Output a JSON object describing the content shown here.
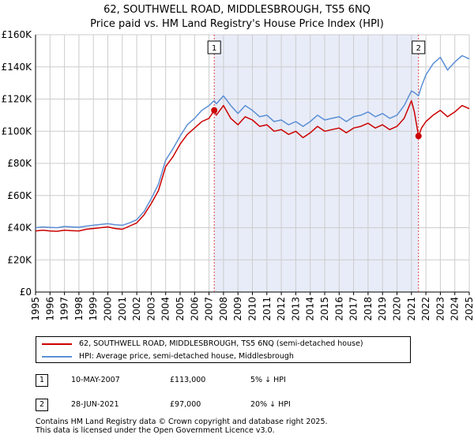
{
  "chart_data": {
    "type": "line",
    "title": "62, SOUTHWELL ROAD, MIDDLESBROUGH, TS5 6NQ",
    "subtitle": "Price paid vs. HM Land Registry's House Price Index (HPI)",
    "xlim": [
      1995,
      2025
    ],
    "ylim": [
      0,
      160000
    ],
    "yticks": [
      0,
      20000,
      40000,
      60000,
      80000,
      100000,
      120000,
      140000,
      160000
    ],
    "ytick_labels": [
      "£0",
      "£20K",
      "£40K",
      "£60K",
      "£80K",
      "£100K",
      "£120K",
      "£140K",
      "£160K"
    ],
    "xticks": [
      1995,
      1996,
      1997,
      1998,
      1999,
      2000,
      2001,
      2002,
      2003,
      2004,
      2005,
      2006,
      2007,
      2008,
      2009,
      2010,
      2011,
      2012,
      2013,
      2014,
      2015,
      2016,
      2017,
      2018,
      2019,
      2020,
      2021,
      2022,
      2023,
      2024,
      2025
    ],
    "grid": true,
    "shaded_span": [
      2007.36,
      2021.49
    ],
    "series": [
      {
        "name": "62, SOUTHWELL ROAD, MIDDLESBROUGH, TS5 6NQ (semi-detached house)",
        "color": "#cc0000",
        "x": [
          1995,
          1995.5,
          1996,
          1996.5,
          1997,
          1997.5,
          1998,
          1998.5,
          1999,
          1999.5,
          2000,
          2000.5,
          2001,
          2001.5,
          2002,
          2002.5,
          2003,
          2003.5,
          2004,
          2004.5,
          2005,
          2005.5,
          2006,
          2006.5,
          2007,
          2007.36,
          2007.5,
          2008,
          2008.5,
          2009,
          2009.5,
          2010,
          2010.5,
          2011,
          2011.5,
          2012,
          2012.5,
          2013,
          2013.5,
          2014,
          2014.5,
          2015,
          2015.5,
          2016,
          2016.5,
          2017,
          2017.5,
          2018,
          2018.5,
          2019,
          2019.5,
          2020,
          2020.5,
          2021,
          2021.2,
          2021.49,
          2021.7,
          2022,
          2022.5,
          2023,
          2023.5,
          2024,
          2024.5,
          2025
        ],
        "values": [
          38000,
          38500,
          38000,
          37800,
          38500,
          38200,
          38000,
          39000,
          39500,
          40000,
          40500,
          39500,
          39000,
          41000,
          43000,
          48000,
          55000,
          63000,
          78000,
          84000,
          92000,
          98000,
          102000,
          106000,
          108000,
          113000,
          110000,
          116000,
          108000,
          104000,
          109000,
          107000,
          103000,
          104000,
          100000,
          101000,
          98000,
          100000,
          96000,
          99000,
          103000,
          100000,
          101000,
          102000,
          99000,
          102000,
          103000,
          105000,
          102000,
          104000,
          101000,
          103000,
          108000,
          119000,
          112000,
          97000,
          102000,
          106000,
          110000,
          113000,
          109000,
          112000,
          116000,
          114000
        ]
      },
      {
        "name": "HPI: Average price, semi-detached house, Middlesbrough",
        "color": "#5b8fd6",
        "x": [
          1995,
          1995.5,
          1996,
          1996.5,
          1997,
          1997.5,
          1998,
          1998.5,
          1999,
          1999.5,
          2000,
          2000.5,
          2001,
          2001.5,
          2002,
          2002.5,
          2003,
          2003.5,
          2004,
          2004.5,
          2005,
          2005.5,
          2006,
          2006.5,
          2007,
          2007.36,
          2007.5,
          2008,
          2008.5,
          2009,
          2009.5,
          2010,
          2010.5,
          2011,
          2011.5,
          2012,
          2012.5,
          2013,
          2013.5,
          2014,
          2014.5,
          2015,
          2015.5,
          2016,
          2016.5,
          2017,
          2017.5,
          2018,
          2018.5,
          2019,
          2019.5,
          2020,
          2020.5,
          2021,
          2021.2,
          2021.49,
          2021.7,
          2022,
          2022.5,
          2023,
          2023.5,
          2024,
          2024.5,
          2025
        ],
        "values": [
          40000,
          40500,
          40200,
          40000,
          40800,
          40500,
          40300,
          41000,
          41500,
          42000,
          42500,
          41800,
          41500,
          43000,
          45000,
          50000,
          58000,
          67000,
          82000,
          89000,
          97000,
          104000,
          108000,
          113000,
          116000,
          119000,
          117000,
          122000,
          116000,
          111000,
          116000,
          113000,
          109000,
          110000,
          106000,
          107000,
          104000,
          106000,
          103000,
          106000,
          110000,
          107000,
          108000,
          109000,
          106000,
          109000,
          110000,
          112000,
          109000,
          111000,
          108000,
          110000,
          116000,
          125000,
          124000,
          122000,
          128000,
          135000,
          142000,
          146000,
          138000,
          143000,
          147000,
          145000
        ]
      }
    ],
    "sales": [
      {
        "label": "1",
        "x": 2007.36,
        "value": 113000
      },
      {
        "label": "2",
        "x": 2021.49,
        "value": 97000
      }
    ]
  },
  "legend": {
    "items": [
      {
        "label": "62, SOUTHWELL ROAD, MIDDLESBROUGH, TS5 6NQ (semi-detached house)",
        "color": "#cc0000"
      },
      {
        "label": "HPI: Average price, semi-detached house, Middlesbrough",
        "color": "#5b8fd6"
      }
    ]
  },
  "sales_table": [
    {
      "num": "1",
      "date": "10-MAY-2007",
      "price": "£113,000",
      "hpi": "5% ↓ HPI"
    },
    {
      "num": "2",
      "date": "28-JUN-2021",
      "price": "£97,000",
      "hpi": "20% ↓ HPI"
    }
  ],
  "footer": {
    "line1": "Contains HM Land Registry data © Crown copyright and database right 2025.",
    "line2": "This data is licensed under the Open Government Licence v3.0."
  }
}
